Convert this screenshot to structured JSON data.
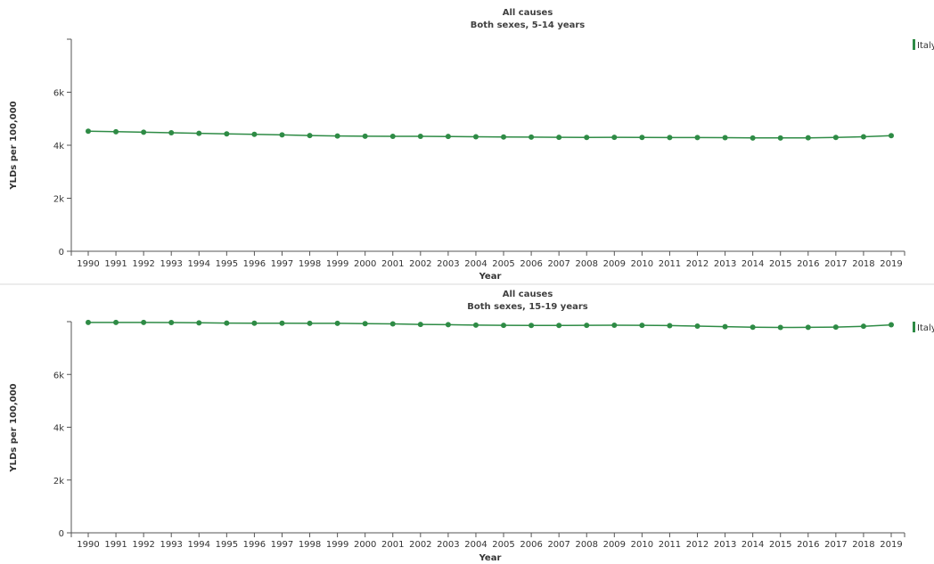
{
  "chart_data": [
    {
      "type": "line",
      "title": "All causes",
      "subtitle": "Both sexes, 5-14 years",
      "xlabel": "Year",
      "ylabel": "YLDs per 100,000",
      "ylim": [
        0,
        8000
      ],
      "yticks": [
        0,
        2000,
        4000,
        6000
      ],
      "ytick_labels": [
        "0",
        "2k",
        "4k",
        "6k"
      ],
      "x": [
        1990,
        1991,
        1992,
        1993,
        1994,
        1995,
        1996,
        1997,
        1998,
        1999,
        2000,
        2001,
        2002,
        2003,
        2004,
        2005,
        2006,
        2007,
        2008,
        2009,
        2010,
        2011,
        2012,
        2013,
        2014,
        2015,
        2016,
        2017,
        2018,
        2019
      ],
      "series": [
        {
          "name": "Italy",
          "color": "#2e8b45",
          "values": [
            4530,
            4510,
            4490,
            4470,
            4450,
            4430,
            4410,
            4390,
            4365,
            4350,
            4340,
            4335,
            4335,
            4330,
            4320,
            4310,
            4305,
            4300,
            4295,
            4300,
            4295,
            4290,
            4290,
            4285,
            4275,
            4275,
            4280,
            4295,
            4320,
            4360
          ]
        }
      ],
      "legend_position": "top-right",
      "grid": false
    },
    {
      "type": "line",
      "title": "All causes",
      "subtitle": "Both sexes, 15-19 years",
      "xlabel": "Year",
      "ylabel": "YLDs per 100,000",
      "ylim": [
        0,
        8000
      ],
      "yticks": [
        0,
        2000,
        4000,
        6000
      ],
      "ytick_labels": [
        "0",
        "2k",
        "4k",
        "6k"
      ],
      "x": [
        1990,
        1991,
        1992,
        1993,
        1994,
        1995,
        1996,
        1997,
        1998,
        1999,
        2000,
        2001,
        2002,
        2003,
        2004,
        2005,
        2006,
        2007,
        2008,
        2009,
        2010,
        2011,
        2012,
        2013,
        2014,
        2015,
        2016,
        2017,
        2018,
        2019
      ],
      "series": [
        {
          "name": "Italy",
          "color": "#2e8b45",
          "values": [
            7970,
            7970,
            7970,
            7965,
            7955,
            7945,
            7940,
            7940,
            7935,
            7935,
            7925,
            7915,
            7895,
            7885,
            7870,
            7860,
            7855,
            7855,
            7860,
            7865,
            7860,
            7850,
            7830,
            7810,
            7790,
            7780,
            7785,
            7795,
            7825,
            7880
          ]
        }
      ],
      "legend_position": "top-right",
      "grid": false
    }
  ]
}
